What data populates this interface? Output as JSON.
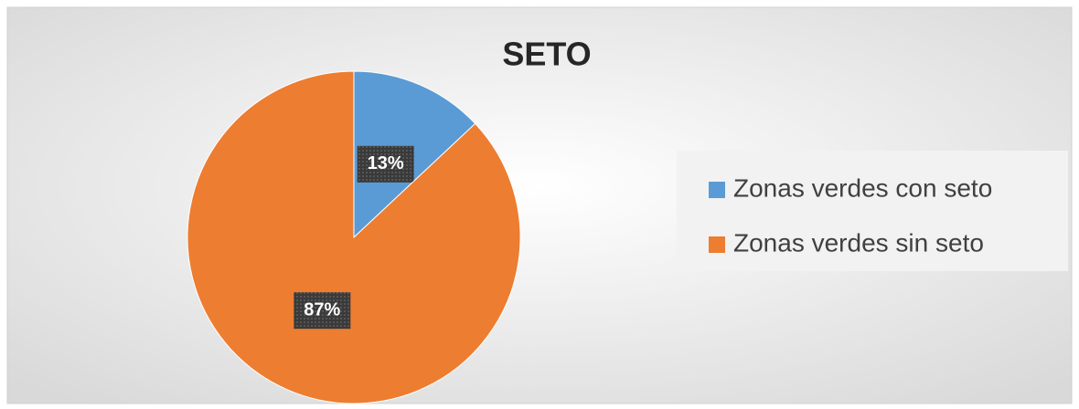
{
  "chart_data": {
    "type": "pie",
    "title": "SETO",
    "categories": [
      "Zonas verdes con seto",
      "Zonas verdes sin seto"
    ],
    "values": [
      13,
      87
    ],
    "value_labels": [
      "13%",
      "87%"
    ],
    "colors": [
      "#5b9bd5",
      "#ed7d31"
    ],
    "legend": "right"
  }
}
